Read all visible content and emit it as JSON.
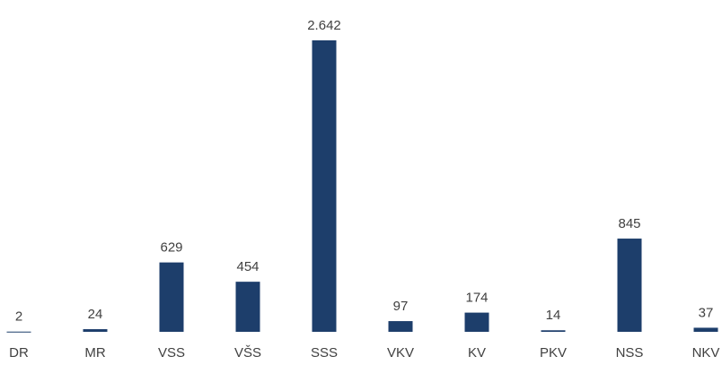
{
  "chart_data": {
    "type": "bar",
    "categories": [
      "DR",
      "MR",
      "VSS",
      "VŠS",
      "SSS",
      "VKV",
      "KV",
      "PKV",
      "NSS",
      "NKV"
    ],
    "values": [
      2,
      24,
      629,
      454,
      2642,
      97,
      174,
      14,
      845,
      37
    ],
    "value_labels": [
      "2",
      "24",
      "629",
      "454",
      "2.642",
      "97",
      "174",
      "14",
      "845",
      "37"
    ],
    "color": "#1d3e6b"
  }
}
